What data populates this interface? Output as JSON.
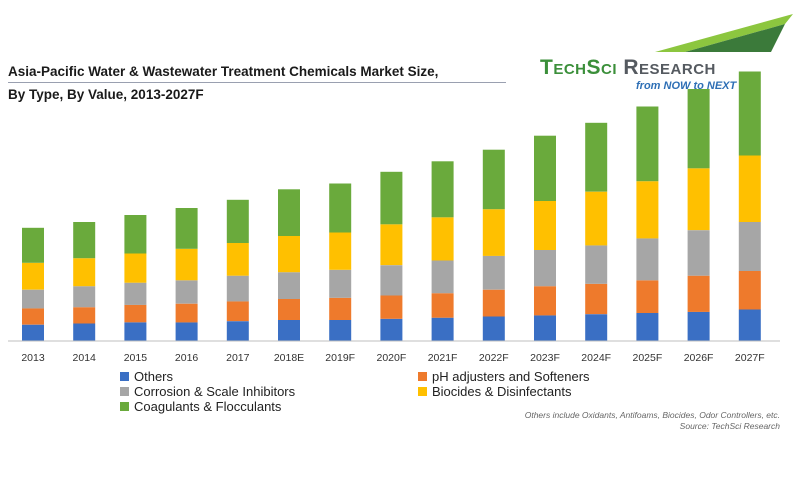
{
  "title": {
    "line1": "Asia-Pacific Water & Wastewater Treatment Chemicals Market Size,",
    "line2": "By Type, By Value, 2013-2027F"
  },
  "logo": {
    "name_part1": "TechSci",
    "name_part2": " Research",
    "tagline": "from NOW to NEXT",
    "colors": {
      "green": "#3b8f3a",
      "gray": "#555a60",
      "blue": "#2e6fb5"
    }
  },
  "notes": {
    "line1": "Others include Oxidants, Antifoams, Biocides, Odor Controllers, etc.",
    "line2": "Source: TechSci Research"
  },
  "chart_data": {
    "type": "bar",
    "stacked": true,
    "title": "Asia-Pacific Water & Wastewater Treatment Chemicals Market Size, By Type, By Value, 2013-2027F",
    "xlabel": "",
    "ylabel": "",
    "grid": false,
    "legend_position": "bottom",
    "ylim": [
      0,
      240
    ],
    "categories": [
      "2013",
      "2014",
      "2015",
      "2016",
      "2017",
      "2018E",
      "2019F",
      "2020F",
      "2021F",
      "2022F",
      "2023F",
      "2024F",
      "2025F",
      "2026F",
      "2027F"
    ],
    "series": [
      {
        "name": "Others",
        "color": "#3a6fc4",
        "values": [
          14,
          15,
          16,
          16,
          17,
          18,
          18,
          19,
          20,
          21,
          22,
          23,
          24,
          25,
          27
        ]
      },
      {
        "name": "pH adjusters and Softeners",
        "color": "#ee7a2c",
        "values": [
          14,
          14,
          15,
          16,
          17,
          18,
          19,
          20,
          21,
          23,
          25,
          26,
          28,
          31,
          33
        ]
      },
      {
        "name": "Corrosion & Scale Inhibitors",
        "color": "#a6a6a6",
        "values": [
          16,
          18,
          19,
          20,
          22,
          23,
          24,
          26,
          28,
          29,
          31,
          33,
          36,
          39,
          42
        ]
      },
      {
        "name": "Biocides & Disinfectants",
        "color": "#ffc000",
        "values": [
          23,
          24,
          25,
          27,
          28,
          31,
          32,
          35,
          37,
          40,
          42,
          46,
          49,
          53,
          57
        ]
      },
      {
        "name": "Coagulants & Flocculants",
        "color": "#6aaa3c",
        "values": [
          30,
          31,
          33,
          35,
          37,
          40,
          42,
          45,
          48,
          51,
          56,
          59,
          64,
          68,
          72
        ]
      }
    ]
  }
}
